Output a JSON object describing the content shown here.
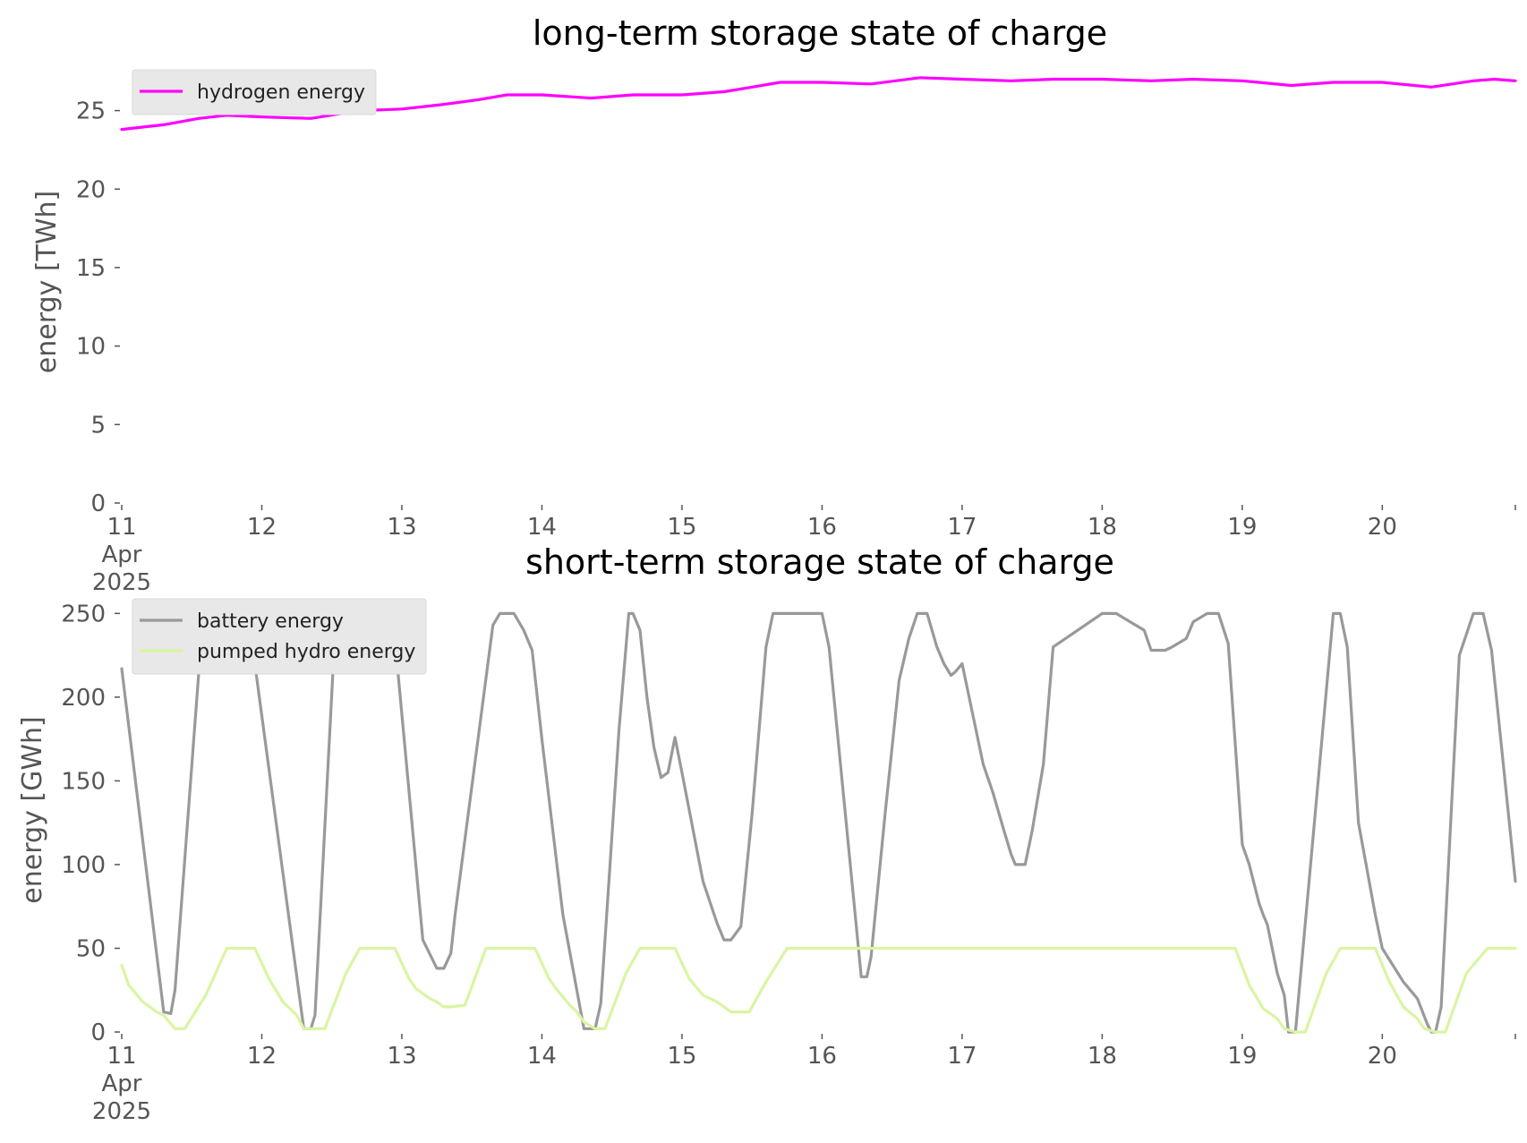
{
  "chart_data": [
    {
      "type": "line",
      "title": "long-term storage state of charge",
      "xlabel": "",
      "ylabel": "energy [TWh]",
      "ylim": [
        0,
        27.2
      ],
      "yticks": [
        0,
        5,
        10,
        15,
        20,
        25
      ],
      "xlim": [
        11,
        20.95
      ],
      "xticks": [
        11,
        12,
        13,
        14,
        15,
        16,
        17,
        18,
        19,
        20
      ],
      "xtick_labels": [
        "11",
        "12",
        "13",
        "14",
        "15",
        "16",
        "17",
        "18",
        "19",
        "20"
      ],
      "xtick_first_sublabels": [
        "Apr",
        "2025"
      ],
      "grid": false,
      "legend_position": "top-left",
      "series": [
        {
          "name": "hydrogen energy",
          "color": "#ff00ff",
          "x": [
            11.0,
            11.3,
            11.55,
            11.75,
            12.0,
            12.35,
            12.7,
            13.0,
            13.3,
            13.55,
            13.75,
            14.0,
            14.35,
            14.65,
            15.0,
            15.3,
            15.5,
            15.7,
            16.0,
            16.35,
            16.7,
            17.0,
            17.35,
            17.65,
            18.0,
            18.35,
            18.65,
            19.0,
            19.35,
            19.65,
            20.0,
            20.35,
            20.65,
            20.8,
            20.95
          ],
          "values": [
            23.8,
            24.1,
            24.5,
            24.7,
            24.6,
            24.5,
            25.0,
            25.1,
            25.4,
            25.7,
            26.0,
            26.0,
            25.8,
            26.0,
            26.0,
            26.2,
            26.5,
            26.8,
            26.8,
            26.7,
            27.1,
            27.0,
            26.9,
            27.0,
            27.0,
            26.9,
            27.0,
            26.9,
            26.6,
            26.8,
            26.8,
            26.5,
            26.9,
            27.0,
            26.9
          ]
        }
      ]
    },
    {
      "type": "line",
      "title": "short-term storage state of charge",
      "xlabel": "",
      "ylabel": "energy [GWh]",
      "ylim": [
        0,
        255
      ],
      "yticks": [
        0,
        50,
        100,
        150,
        200,
        250
      ],
      "xlim": [
        11,
        20.95
      ],
      "xticks": [
        11,
        12,
        13,
        14,
        15,
        16,
        17,
        18,
        19,
        20
      ],
      "xtick_labels": [
        "11",
        "12",
        "13",
        "14",
        "15",
        "16",
        "17",
        "18",
        "19",
        "20"
      ],
      "xtick_first_sublabels": [
        "Apr",
        "2025"
      ],
      "grid": false,
      "legend_position": "top-left",
      "series": [
        {
          "name": "battery energy",
          "color": "#999999",
          "x": [
            11.0,
            11.3,
            11.35,
            11.38,
            11.55,
            11.68,
            11.85,
            11.95,
            12.3,
            12.35,
            12.38,
            12.52,
            12.66,
            12.7,
            12.75,
            12.85,
            12.95,
            13.15,
            13.25,
            13.3,
            13.35,
            13.38,
            13.65,
            13.7,
            13.75,
            13.8,
            13.87,
            13.93,
            14.0,
            14.15,
            14.3,
            14.38,
            14.42,
            14.55,
            14.62,
            14.65,
            14.7,
            14.75,
            14.8,
            14.85,
            14.9,
            14.95,
            15.0,
            15.15,
            15.25,
            15.3,
            15.35,
            15.42,
            15.5,
            15.6,
            15.65,
            15.7,
            16.0,
            16.05,
            16.28,
            16.32,
            16.35,
            16.45,
            16.55,
            16.62,
            16.68,
            16.75,
            16.82,
            16.87,
            16.92,
            16.95,
            17.0,
            17.15,
            17.22,
            17.3,
            17.35,
            17.38,
            17.45,
            17.5,
            17.58,
            17.65,
            18.0,
            18.1,
            18.3,
            18.35,
            18.45,
            18.5,
            18.6,
            18.65,
            18.75,
            18.83,
            18.9,
            19.0,
            19.05,
            19.12,
            19.15,
            19.18,
            19.25,
            19.3,
            19.33,
            19.38,
            19.65,
            19.7,
            19.75,
            19.83,
            19.95,
            20.0,
            20.15,
            20.2,
            20.25,
            20.32,
            20.35,
            20.38,
            20.42,
            20.55,
            20.65,
            20.72,
            20.78,
            20.95
          ],
          "values": [
            217,
            12,
            11,
            25,
            215,
            245,
            235,
            220,
            2,
            2,
            10,
            235,
            250,
            250,
            250,
            250,
            235,
            55,
            38,
            38,
            47,
            70,
            243,
            250,
            250,
            250,
            240,
            228,
            175,
            70,
            2,
            2,
            17,
            180,
            250,
            250,
            240,
            200,
            170,
            152,
            155,
            176,
            155,
            90,
            65,
            55,
            55,
            63,
            130,
            230,
            250,
            250,
            250,
            230,
            33,
            33,
            45,
            130,
            210,
            235,
            250,
            250,
            230,
            220,
            213,
            215,
            220,
            160,
            143,
            120,
            106,
            100,
            100,
            120,
            160,
            230,
            250,
            250,
            240,
            228,
            228,
            230,
            235,
            245,
            250,
            250,
            232,
            112,
            100,
            77,
            70,
            64,
            35,
            22,
            0,
            0,
            250,
            250,
            230,
            125,
            70,
            50,
            30,
            25,
            20,
            5,
            0,
            0,
            15,
            225,
            250,
            250,
            228,
            90
          ]
        },
        {
          "name": "pumped hydro energy",
          "color": "#d9f5a3",
          "x": [
            11.0,
            11.05,
            11.15,
            11.25,
            11.3,
            11.38,
            11.45,
            11.6,
            11.75,
            11.95,
            12.05,
            12.15,
            12.25,
            12.3,
            12.38,
            12.45,
            12.6,
            12.7,
            12.95,
            13.05,
            13.1,
            13.2,
            13.25,
            13.3,
            13.35,
            13.45,
            13.6,
            13.75,
            13.95,
            14.05,
            14.1,
            14.2,
            14.25,
            14.3,
            14.38,
            14.45,
            14.6,
            14.7,
            14.95,
            15.05,
            15.15,
            15.25,
            15.3,
            15.35,
            15.42,
            15.48,
            15.6,
            15.75,
            16.0,
            17.0,
            18.0,
            18.95,
            19.05,
            19.15,
            19.25,
            19.3,
            19.38,
            19.45,
            19.6,
            19.7,
            19.95,
            20.05,
            20.15,
            20.25,
            20.3,
            20.38,
            20.45,
            20.6,
            20.75,
            20.95
          ],
          "values": [
            40,
            28,
            18,
            12,
            10,
            2,
            2,
            22,
            50,
            50,
            32,
            18,
            10,
            2,
            2,
            2,
            35,
            50,
            50,
            32,
            26,
            20,
            18,
            15,
            15,
            16,
            50,
            50,
            50,
            32,
            26,
            16,
            12,
            6,
            2,
            2,
            35,
            50,
            50,
            32,
            22,
            18,
            15,
            12,
            12,
            12,
            30,
            50,
            50,
            50,
            50,
            50,
            28,
            14,
            8,
            2,
            0,
            0,
            35,
            50,
            50,
            30,
            15,
            8,
            2,
            0,
            0,
            35,
            50,
            50
          ]
        }
      ]
    }
  ]
}
